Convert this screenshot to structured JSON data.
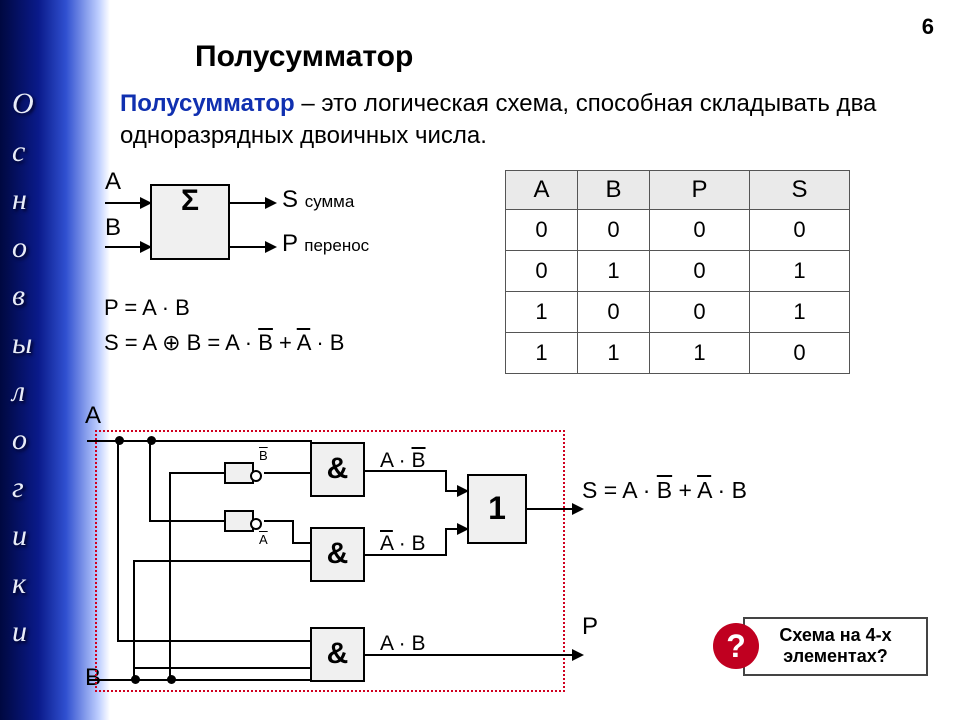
{
  "page_number": "6",
  "sidebar_chars": [
    "О",
    "с",
    "н",
    "о",
    "в",
    "ы",
    " ",
    "л",
    "о",
    "г",
    "и",
    "к",
    "и"
  ],
  "title": "Полусумматор",
  "definition_bold": "Полусумматор",
  "definition_rest": " – это логическая схема, способная складывать два одноразрядных двоичных числа.",
  "sigma": {
    "symbol": "Σ",
    "in_a": "A",
    "in_b": "B",
    "out_s": "S",
    "out_s_note": "сумма",
    "out_p": "P",
    "out_p_note": "перенос"
  },
  "formula_p": "P = A · B",
  "formula_s_lead": "S = A ⊕ B = A · ",
  "formula_s_bbar": "B",
  "formula_s_mid": " + ",
  "formula_s_abar": "A",
  "formula_s_tail": " · B",
  "table": {
    "columns": [
      "A",
      "B",
      "P",
      "S"
    ],
    "rows": [
      [
        "0",
        "0",
        "0",
        "0"
      ],
      [
        "0",
        "1",
        "0",
        "1"
      ],
      [
        "1",
        "0",
        "0",
        "1"
      ],
      [
        "1",
        "1",
        "1",
        "0"
      ]
    ],
    "header_bg": "#eaeaea",
    "border_color": "#555555"
  },
  "schematic": {
    "in_a": "A",
    "in_b": "B",
    "and_sym": "&",
    "or_sym": "1",
    "not_label_a": "A",
    "not_label_b": "B",
    "expr_and1_a": "A · ",
    "expr_and1_b": "B",
    "expr_and2_a": "A",
    "expr_and2_b": " · B",
    "expr_and3": "A · B",
    "out_s_lead": "S = A · ",
    "out_s_bbar": "B",
    "out_s_mid": " + ",
    "out_s_abar": "A",
    "out_s_tail": " · B",
    "out_p": "P",
    "colors": {
      "border": "#d00020",
      "gate_bg": "#f0f0f0"
    }
  },
  "callout": {
    "badge": "?",
    "text": "Схема на 4-х элементах?",
    "badge_bg": "#c00020"
  }
}
